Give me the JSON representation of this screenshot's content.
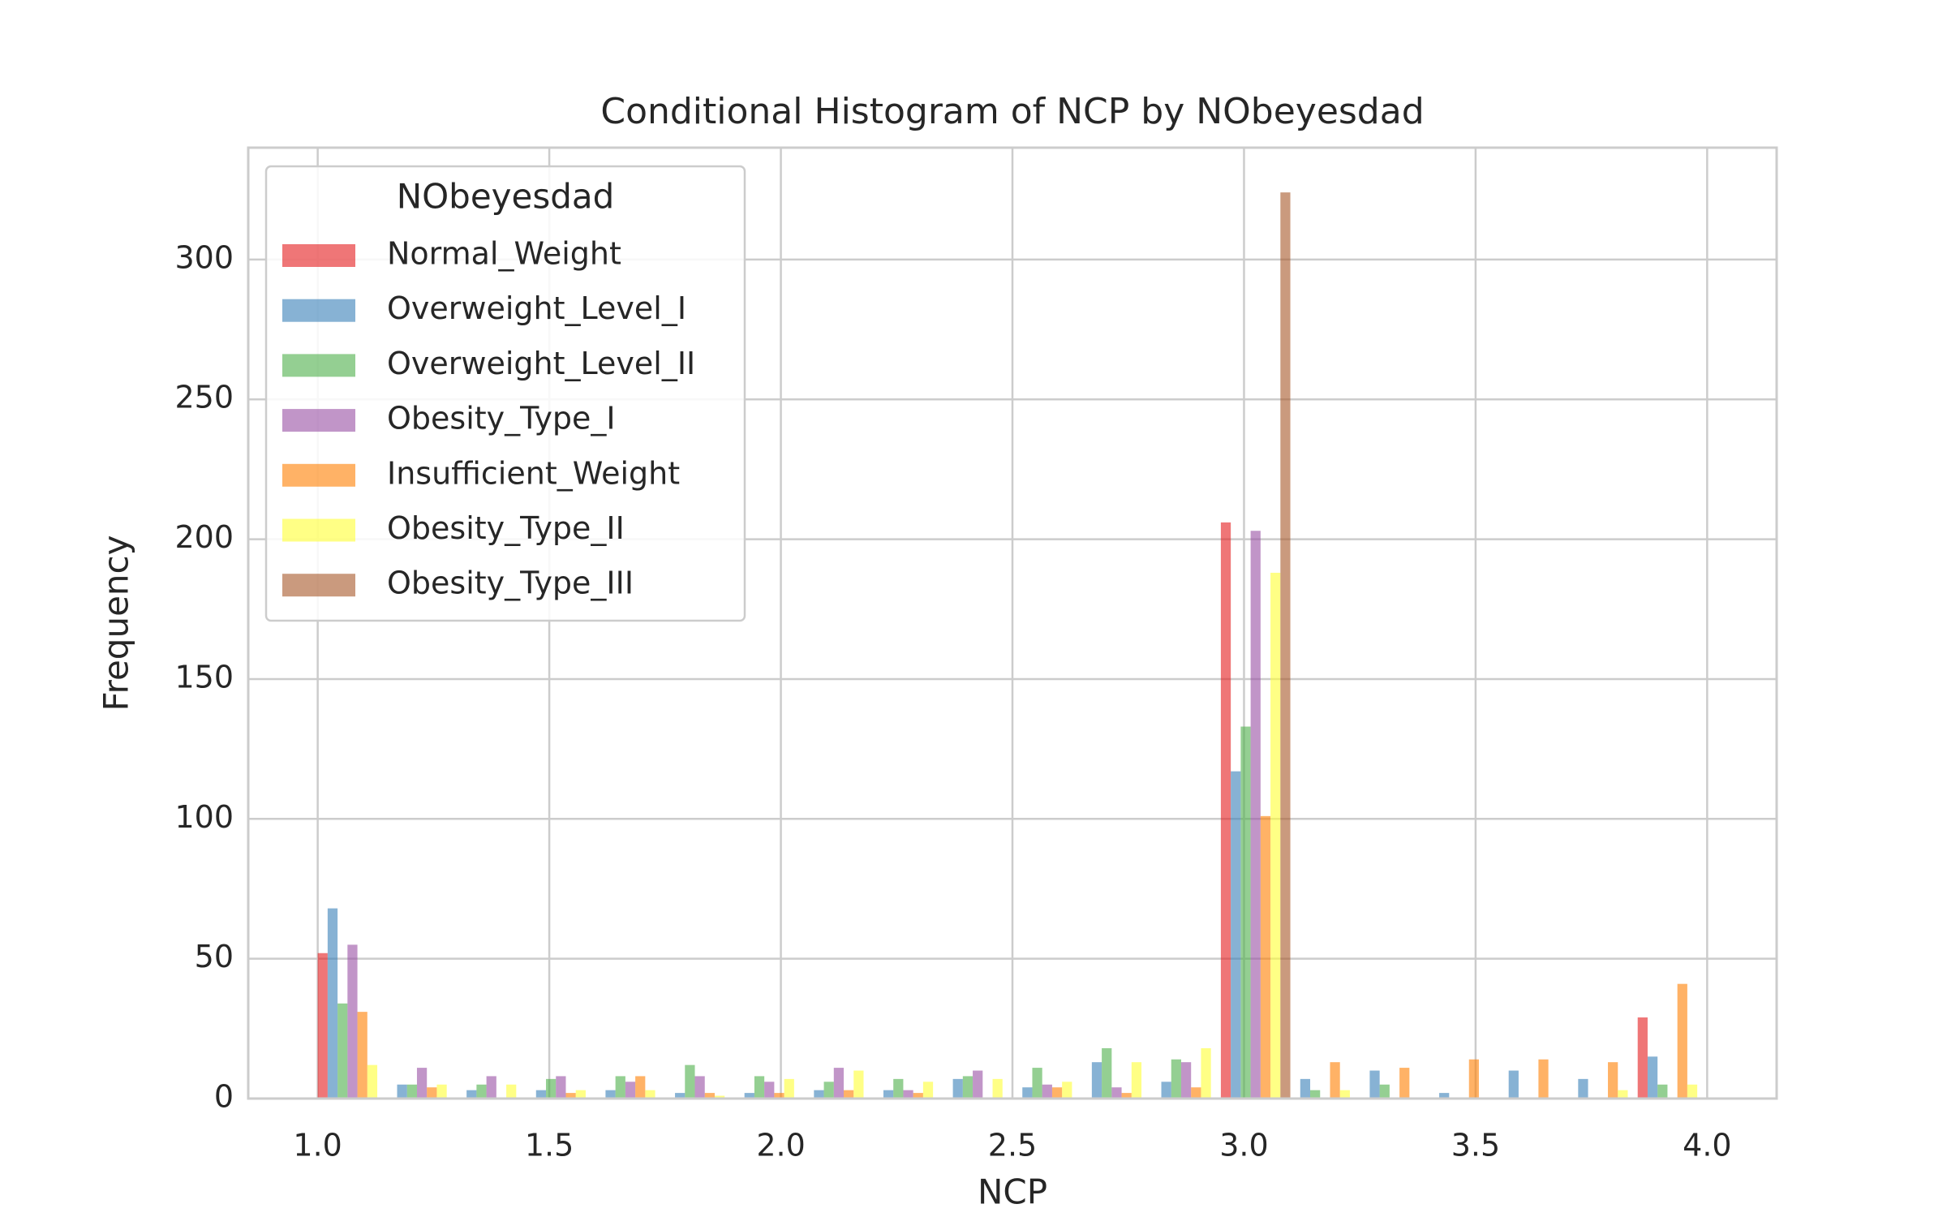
{
  "chart_data": {
    "type": "histogram",
    "title": "Conditional Histogram of NCP by NObeyesdad",
    "x_label": "NCP",
    "y_label": "Frequency",
    "legend_title": "NObeyesdad",
    "legend_loc": "upper left",
    "grid": true,
    "bins": [
      1,
      1.15,
      1.3,
      1.45,
      1.6,
      1.75,
      1.9,
      2.05,
      2.2,
      2.35,
      2.5,
      2.65,
      2.8,
      2.95,
      3.1,
      3.25,
      3.4,
      3.55,
      3.7,
      3.85,
      4
    ],
    "series": [
      {
        "name": "Normal_Weight",
        "color": "#e41a1c",
        "values": [
          52,
          0,
          0,
          0,
          0,
          0,
          0,
          0,
          0,
          0,
          0,
          0,
          0,
          206,
          0,
          0,
          0,
          0,
          0,
          29
        ]
      },
      {
        "name": "Overweight_Level_I",
        "color": "#377eb8",
        "values": [
          68,
          5,
          3,
          3,
          3,
          2,
          2,
          3,
          3,
          7,
          4,
          13,
          6,
          117,
          7,
          10,
          2,
          10,
          7,
          15
        ]
      },
      {
        "name": "Overweight_Level_II",
        "color": "#4daf4a",
        "values": [
          34,
          5,
          5,
          7,
          8,
          12,
          8,
          6,
          7,
          8,
          11,
          18,
          14,
          133,
          3,
          5,
          0,
          0,
          0,
          5
        ]
      },
      {
        "name": "Obesity_Type_I",
        "color": "#984ea3",
        "values": [
          55,
          11,
          8,
          8,
          6,
          8,
          6,
          11,
          3,
          10,
          5,
          4,
          13,
          203,
          0,
          0,
          0,
          0,
          0,
          0
        ]
      },
      {
        "name": "Insufficient_Weight",
        "color": "#ff7f00",
        "values": [
          31,
          4,
          0,
          2,
          8,
          2,
          2,
          3,
          2,
          0,
          4,
          2,
          4,
          101,
          13,
          11,
          14,
          14,
          13,
          41
        ]
      },
      {
        "name": "Obesity_Type_II",
        "color": "#ffff33",
        "values": [
          12,
          5,
          5,
          3,
          3,
          1,
          7,
          10,
          6,
          7,
          6,
          13,
          18,
          188,
          3,
          0,
          0,
          0,
          3,
          5
        ]
      },
      {
        "name": "Obesity_Type_III",
        "color": "#a65628",
        "values": [
          0,
          0,
          0,
          0,
          0,
          0,
          0,
          0,
          0,
          0,
          0,
          0,
          0,
          324,
          0,
          0,
          0,
          0,
          0,
          0
        ]
      }
    ],
    "xlim": [
      0.85,
      4.15
    ],
    "ylim": [
      0,
      340
    ],
    "xticks": [
      {
        "value": 1,
        "label": "1.0"
      },
      {
        "value": 1.5,
        "label": "1.5"
      },
      {
        "value": 2,
        "label": "2.0"
      },
      {
        "value": 2.5,
        "label": "2.5"
      },
      {
        "value": 3,
        "label": "3.0"
      },
      {
        "value": 3.5,
        "label": "3.5"
      },
      {
        "value": 4,
        "label": "4.0"
      }
    ],
    "yticks": [
      0,
      50,
      100,
      150,
      200,
      250,
      300
    ]
  }
}
